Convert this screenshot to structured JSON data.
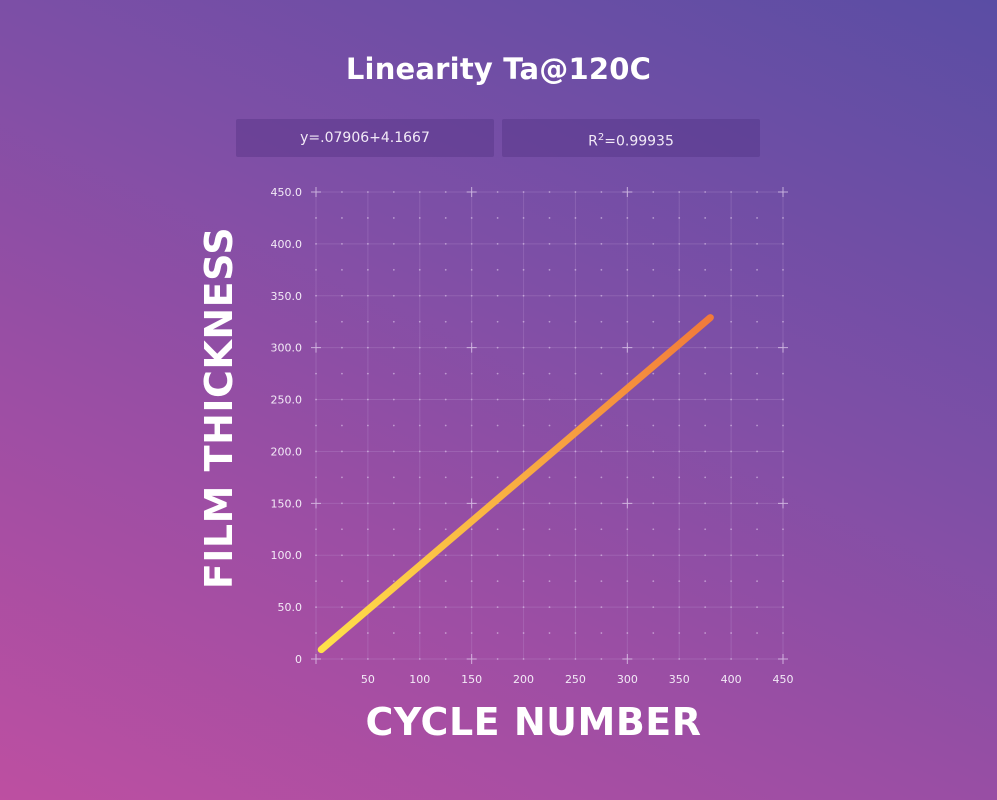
{
  "chart_data": {
    "type": "line",
    "title": "Linearity Ta@120C",
    "equation": "y=.07906+4.1667",
    "r2_label": "R",
    "r2_sup": "2",
    "r2_value": "=0.99935",
    "xlabel": "CYCLE NUMBER",
    "ylabel": "FILM THICKNESS",
    "xlim": [
      0,
      450
    ],
    "ylim": [
      0,
      450
    ],
    "x_ticks": [
      "50",
      "100",
      "150",
      "200",
      "250",
      "300",
      "350",
      "400",
      "450"
    ],
    "y_ticks": [
      "0",
      "50.0",
      "100.0",
      "150.0",
      "200.0",
      "250.0",
      "300.0",
      "350.0",
      "400.0",
      "450.0"
    ],
    "grid": true,
    "series": [
      {
        "x": [
          5,
          380
        ],
        "y": [
          9,
          329
        ]
      }
    ],
    "colors": {
      "line_start": "#ffe14a",
      "line_end": "#f27a3a",
      "grid": "#c8a8e0"
    }
  }
}
